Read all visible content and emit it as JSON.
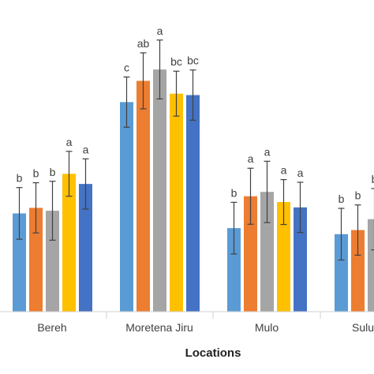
{
  "chart_data": {
    "type": "bar",
    "title": "",
    "xlabel": "Locations",
    "ylabel": "",
    "ylim": [
      0,
      100
    ],
    "grid": false,
    "categories": [
      "Bereh",
      "Moretena Jiru",
      "Mulo",
      "Sulu"
    ],
    "colors": [
      "#5B9BD5",
      "#ED7D31",
      "#A5A5A5",
      "#FFC000",
      "#4472C4"
    ],
    "series": [
      {
        "values": [
          40.7,
          86.8,
          34.6,
          32.1
        ],
        "errors": [
          10.7,
          10.4,
          10.7,
          10.7
        ],
        "labels": [
          "b",
          "c",
          "b",
          "b"
        ]
      },
      {
        "values": [
          43.0,
          95.6,
          47.8,
          33.8
        ],
        "errors": [
          10.4,
          11.6,
          11.6,
          10.4
        ],
        "labels": [
          "b",
          "ab",
          "a",
          "b"
        ]
      },
      {
        "values": [
          41.8,
          100.3,
          49.6,
          38.3
        ],
        "errors": [
          12.2,
          12.2,
          12.7,
          12.7
        ],
        "labels": [
          "b",
          "a",
          "a",
          "b"
        ]
      },
      {
        "values": [
          57.1,
          90.3,
          45.4,
          null
        ],
        "errors": [
          9.3,
          9.3,
          9.3,
          null
        ],
        "labels": [
          "a",
          "bc",
          "a",
          null
        ]
      },
      {
        "values": [
          52.9,
          89.7,
          43.2,
          null
        ],
        "errors": [
          10.4,
          10.4,
          10.4,
          null
        ],
        "labels": [
          "a",
          "bc",
          "a",
          null
        ]
      }
    ]
  }
}
